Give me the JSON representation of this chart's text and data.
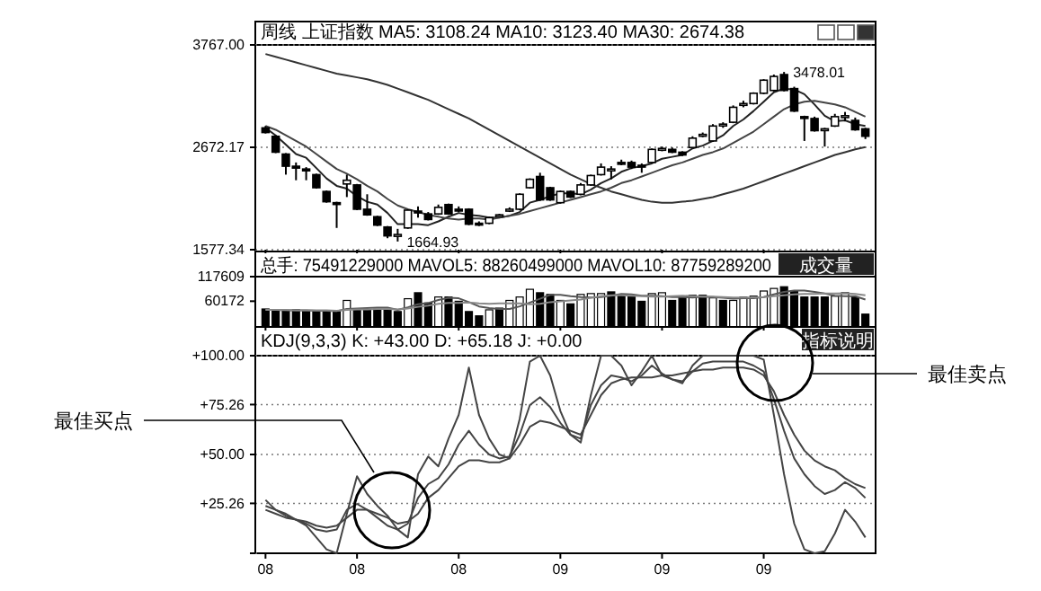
{
  "chart_data": [
    {
      "type": "candlestick",
      "title": "周线  上证指数 MA5: 3108.24 MA10: 3123.40 MA30: 2674.38",
      "categories": [
        "08",
        null,
        null,
        null,
        null,
        null,
        null,
        null,
        null,
        "08",
        null,
        null,
        null,
        null,
        null,
        null,
        null,
        null,
        null,
        "08",
        null,
        null,
        null,
        null,
        null,
        null,
        null,
        null,
        null,
        "09",
        null,
        null,
        null,
        null,
        null,
        null,
        null,
        null,
        null,
        "09",
        null,
        null,
        null,
        null,
        null,
        null,
        null,
        null,
        null,
        "09",
        null,
        null,
        null,
        null,
        null,
        null,
        null,
        null,
        null,
        null
      ],
      "ohlc": [
        [
          2880,
          2900,
          2820,
          2830
        ],
        [
          2790,
          2800,
          2610,
          2620
        ],
        [
          2600,
          2610,
          2380,
          2470
        ],
        [
          2470,
          2510,
          2320,
          2450
        ],
        [
          2440,
          2460,
          2320,
          2430
        ],
        [
          2380,
          2390,
          2230,
          2240
        ],
        [
          2200,
          2210,
          2080,
          2090
        ],
        [
          2080,
          2090,
          1810,
          2070
        ],
        [
          2280,
          2380,
          2140,
          2320
        ],
        [
          2270,
          2280,
          2000,
          2010
        ],
        [
          2010,
          2170,
          1940,
          1950
        ],
        [
          1930,
          1940,
          1830,
          1840
        ],
        [
          1820,
          1830,
          1700,
          1725
        ],
        [
          1720,
          1800,
          1664.93,
          1740
        ],
        [
          1810,
          2010,
          1800,
          2000
        ],
        [
          1990,
          2040,
          1920,
          1980
        ],
        [
          1960,
          1980,
          1890,
          1900
        ],
        [
          1960,
          2060,
          1950,
          2030
        ],
        [
          2060,
          2070,
          1950,
          1960
        ],
        [
          2010,
          2040,
          1980,
          2000
        ],
        [
          2010,
          2020,
          1840,
          1850
        ],
        [
          1860,
          1880,
          1830,
          1850
        ],
        [
          1860,
          1930,
          1850,
          1920
        ],
        [
          1940,
          1960,
          1930,
          1950
        ],
        [
          1990,
          2030,
          1980,
          2010
        ],
        [
          2010,
          2180,
          2000,
          2170
        ],
        [
          2240,
          2340,
          2230,
          2330
        ],
        [
          2360,
          2400,
          2100,
          2110
        ],
        [
          2240,
          2250,
          2100,
          2110
        ],
        [
          2080,
          2210,
          2070,
          2200
        ],
        [
          2200,
          2210,
          2130,
          2140
        ],
        [
          2170,
          2290,
          2160,
          2270
        ],
        [
          2270,
          2380,
          2260,
          2370
        ],
        [
          2380,
          2500,
          2370,
          2460
        ],
        [
          2430,
          2470,
          2330,
          2440
        ],
        [
          2510,
          2540,
          2480,
          2500
        ],
        [
          2510,
          2530,
          2440,
          2460
        ],
        [
          2480,
          2500,
          2400,
          2470
        ],
        [
          2510,
          2660,
          2500,
          2650
        ],
        [
          2650,
          2680,
          2630,
          2660
        ],
        [
          2650,
          2670,
          2610,
          2620
        ],
        [
          2620,
          2630,
          2580,
          2590
        ],
        [
          2670,
          2790,
          2660,
          2770
        ],
        [
          2800,
          2830,
          2780,
          2810
        ],
        [
          2740,
          2920,
          2730,
          2900
        ],
        [
          2910,
          2940,
          2880,
          2920
        ],
        [
          2940,
          3120,
          2930,
          3100
        ],
        [
          3130,
          3170,
          3100,
          3140
        ],
        [
          3140,
          3260,
          3130,
          3250
        ],
        [
          3250,
          3400,
          3240,
          3390
        ],
        [
          3280,
          3450,
          3270,
          3430
        ],
        [
          3450,
          3478.01,
          3270,
          3280
        ],
        [
          3300,
          3320,
          3050,
          3060
        ],
        [
          3000,
          3010,
          2740,
          2990
        ],
        [
          2980,
          3000,
          2840,
          2850
        ],
        [
          2860,
          2880,
          2680,
          2870
        ],
        [
          2900,
          3030,
          2890,
          3000
        ],
        [
          2990,
          3050,
          2950,
          3010
        ],
        [
          2960,
          2990,
          2850,
          2860
        ],
        [
          2870,
          2880,
          2760,
          2790
        ]
      ],
      "series": [
        {
          "type": "line",
          "color": "#222222",
          "values": [
            2880,
            2800,
            2700,
            2600,
            2560,
            2450,
            2340,
            2260,
            2230,
            2150,
            2090,
            2060,
            1970,
            1850,
            1850,
            1850,
            1840,
            1880,
            1930,
            1970,
            1950,
            1940,
            1920,
            1920,
            1940,
            1980,
            2080,
            2110,
            2150,
            2180,
            2180,
            2170,
            2220,
            2290,
            2340,
            2410,
            2450,
            2470,
            2500,
            2550,
            2570,
            2590,
            2660,
            2690,
            2740,
            2800,
            2900,
            2970,
            3060,
            3160,
            3260,
            3300,
            3290,
            3240,
            3130,
            3010,
            2950,
            2960,
            2920,
            2900
          ]
        },
        {
          "type": "line",
          "color": "#444444",
          "values": [
            2900,
            2860,
            2800,
            2740,
            2680,
            2600,
            2520,
            2440,
            2390,
            2330,
            2260,
            2200,
            2120,
            2050,
            2010,
            1980,
            1950,
            1930,
            1910,
            1900,
            1910,
            1910,
            1900,
            1920,
            1940,
            1960,
            1990,
            2020,
            2050,
            2080,
            2110,
            2140,
            2170,
            2200,
            2240,
            2290,
            2320,
            2360,
            2400,
            2440,
            2480,
            2510,
            2550,
            2590,
            2620,
            2660,
            2720,
            2780,
            2840,
            2920,
            3000,
            3080,
            3130,
            3160,
            3170,
            3150,
            3130,
            3100,
            3050,
            3000
          ]
        },
        {
          "type": "line",
          "color": "#333333",
          "values": [
            3670,
            3640,
            3610,
            3580,
            3550,
            3520,
            3490,
            3460,
            3440,
            3420,
            3400,
            3370,
            3340,
            3300,
            3260,
            3220,
            3180,
            3130,
            3080,
            3030,
            2980,
            2920,
            2860,
            2800,
            2740,
            2680,
            2620,
            2560,
            2500,
            2440,
            2380,
            2330,
            2280,
            2240,
            2200,
            2170,
            2140,
            2110,
            2090,
            2080,
            2080,
            2090,
            2100,
            2120,
            2140,
            2170,
            2200,
            2230,
            2270,
            2310,
            2350,
            2390,
            2430,
            2470,
            2510,
            2550,
            2590,
            2620,
            2650,
            2674
          ]
        }
      ],
      "ylim": [
        1577.34,
        3767
      ],
      "yticks": [
        {
          "value": 1577.34,
          "label": "1577.34"
        },
        {
          "value": 2672.17,
          "label": "2672.17"
        },
        {
          "value": 3767,
          "label": "3767.00"
        }
      ],
      "grid": "y",
      "tick_labels": "y",
      "annotations": [
        "1664.93",
        "3478.01"
      ]
    },
    {
      "type": "bar",
      "title": "总手: 75491229000 MAVOL5: 88260499000 MAVOL10: 87759289200",
      "categories": [
        "08",
        null,
        null,
        null,
        null,
        null,
        null,
        null,
        null,
        "08",
        null,
        null,
        null,
        null,
        null,
        null,
        null,
        null,
        null,
        "08",
        null,
        null,
        null,
        null,
        null,
        null,
        null,
        null,
        null,
        "09",
        null,
        null,
        null,
        null,
        null,
        null,
        null,
        null,
        null,
        "09",
        null,
        null,
        null,
        null,
        null,
        null,
        null,
        null,
        null,
        "09",
        null,
        null,
        null,
        null,
        null,
        null,
        null,
        null,
        null,
        null
      ],
      "series": [
        {
          "type": "bar",
          "colors": [
            "#000000",
            "#000000",
            "#000000",
            "#000000",
            "#000000",
            "#000000",
            "#000000",
            "#000000",
            "#ffffff",
            "#000000",
            "#000000",
            "#000000",
            "#000000",
            "#000000",
            "#ffffff",
            "#000000",
            "#000000",
            "#ffffff",
            "#000000",
            "#000000",
            "#000000",
            "#000000",
            "#ffffff",
            "#000000",
            "#ffffff",
            "#ffffff",
            "#ffffff",
            "#000000",
            "#000000",
            "#ffffff",
            "#000000",
            "#ffffff",
            "#ffffff",
            "#ffffff",
            "#000000",
            "#000000",
            "#000000",
            "#000000",
            "#ffffff",
            "#ffffff",
            "#000000",
            "#000000",
            "#ffffff",
            "#000000",
            "#ffffff",
            "#000000",
            "#ffffff",
            "#ffffff",
            "#ffffff",
            "#ffffff",
            "#ffffff",
            "#000000",
            "#000000",
            "#000000",
            "#000000",
            "#000000",
            "#ffffff",
            "#ffffff",
            "#000000",
            "#000000"
          ],
          "values": [
            42000,
            40000,
            38000,
            40000,
            38000,
            38000,
            38000,
            36000,
            62000,
            42000,
            40000,
            42000,
            40000,
            36000,
            66000,
            80000,
            56000,
            70000,
            70000,
            60000,
            36000,
            26000,
            40000,
            44000,
            62000,
            70000,
            88000,
            80000,
            76000,
            62000,
            54000,
            76000,
            78000,
            78000,
            82000,
            74000,
            70000,
            60000,
            78000,
            80000,
            62000,
            72000,
            74000,
            74000,
            68000,
            62000,
            62000,
            70000,
            72000,
            84000,
            90000,
            94000,
            84000,
            70000,
            70000,
            70000,
            72000,
            80000,
            70000,
            30000
          ]
        },
        {
          "type": "line",
          "color": "#555555",
          "values": [
            40000,
            40000,
            39000,
            39000,
            39000,
            38000,
            38000,
            37000,
            42000,
            43000,
            44000,
            45000,
            45000,
            40000,
            46000,
            53000,
            56000,
            63000,
            68000,
            67000,
            58000,
            48000,
            44000,
            42000,
            42000,
            48000,
            57000,
            66000,
            75000,
            75000,
            72000,
            70000,
            69000,
            70000,
            73000,
            77000,
            76000,
            73000,
            73000,
            72000,
            70000,
            70000,
            69000,
            71000,
            70000,
            68000,
            66000,
            67000,
            67000,
            70000,
            76000,
            82000,
            85000,
            85000,
            82000,
            78000,
            73000,
            72000,
            72000,
            64000
          ]
        },
        {
          "type": "line",
          "color": "#888888",
          "values": [
            40000,
            40000,
            40000,
            39000,
            39000,
            39000,
            39000,
            38000,
            40000,
            41000,
            41000,
            42000,
            42000,
            41000,
            43000,
            47000,
            50000,
            54000,
            56000,
            56000,
            57000,
            55000,
            54000,
            55000,
            55000,
            55000,
            53000,
            54000,
            58000,
            60000,
            62000,
            64000,
            68000,
            72000,
            74000,
            74000,
            73000,
            72000,
            71000,
            71000,
            72000,
            73000,
            72000,
            71000,
            71000,
            70000,
            69000,
            69000,
            69000,
            70000,
            72000,
            74000,
            76000,
            77000,
            77000,
            78000,
            78000,
            79000,
            77000,
            74000
          ]
        }
      ],
      "ylim": [
        0,
        117609
      ],
      "yticks": [
        60172,
        117609
      ],
      "tick_labels": "y",
      "annotations": [
        "成交量"
      ]
    },
    {
      "type": "line",
      "title": "KDJ(9,3,3) K: +43.00 D: +65.18 J: +0.00",
      "categories": [
        "08",
        null,
        null,
        null,
        null,
        null,
        null,
        null,
        null,
        "08",
        null,
        null,
        null,
        null,
        null,
        null,
        null,
        null,
        null,
        "08",
        null,
        null,
        null,
        null,
        null,
        null,
        null,
        null,
        null,
        "09",
        null,
        null,
        null,
        null,
        null,
        null,
        null,
        null,
        null,
        "09",
        null,
        null,
        null,
        null,
        null,
        null,
        null,
        null,
        null,
        "09",
        null,
        null,
        null,
        null,
        null,
        null,
        null,
        null,
        null,
        null
      ],
      "series": [
        {
          "color": "#444444",
          "values": [
            24,
            22,
            19,
            17,
            15,
            12,
            11,
            12,
            22,
            25,
            22,
            18,
            14,
            12,
            15,
            28,
            35,
            38,
            45,
            55,
            62,
            55,
            50,
            48,
            49,
            60,
            75,
            79,
            74,
            66,
            60,
            58,
            75,
            85,
            90,
            89,
            87,
            90,
            95,
            91,
            88,
            87,
            92,
            96,
            97,
            97,
            97,
            97,
            95,
            92,
            78,
            62,
            48,
            40,
            34,
            30,
            32,
            36,
            33,
            28
          ]
        },
        {
          "color": "#444444",
          "values": [
            22,
            20,
            18,
            17,
            16,
            14,
            13,
            14,
            18,
            22,
            22,
            20,
            18,
            15,
            16,
            20,
            28,
            32,
            38,
            44,
            47,
            47,
            46,
            46,
            48,
            55,
            64,
            67,
            66,
            64,
            62,
            60,
            70,
            80,
            86,
            88,
            89,
            89,
            89,
            90,
            90,
            91,
            92,
            93,
            93,
            94,
            94,
            94,
            93,
            90,
            82,
            70,
            60,
            52,
            47,
            44,
            42,
            38,
            35,
            33
          ]
        },
        {
          "color": "#444444",
          "values": [
            27,
            22,
            20,
            17,
            14,
            8,
            2,
            0,
            20,
            39,
            30,
            24,
            19,
            12,
            8,
            40,
            49,
            44,
            58,
            70,
            94,
            70,
            58,
            50,
            48,
            68,
            97,
            100,
            90,
            72,
            60,
            56,
            80,
            100,
            100,
            95,
            85,
            92,
            100,
            90,
            88,
            86,
            95,
            100,
            100,
            100,
            100,
            100,
            100,
            98,
            70,
            40,
            15,
            2,
            0,
            1,
            10,
            22,
            16,
            8
          ]
        }
      ],
      "ylim": [
        0,
        100
      ],
      "yticks": [
        {
          "value": 0,
          "label": null
        },
        {
          "value": 25.26,
          "label": "+25.26"
        },
        {
          "value": 50,
          "label": "+50.00"
        },
        {
          "value": 75.26,
          "label": "+75.26"
        },
        {
          "value": 100,
          "label": "+100.00"
        }
      ],
      "grid": "y",
      "annotations": [
        "指标说明",
        "最佳买点",
        "最佳卖点"
      ]
    }
  ]
}
